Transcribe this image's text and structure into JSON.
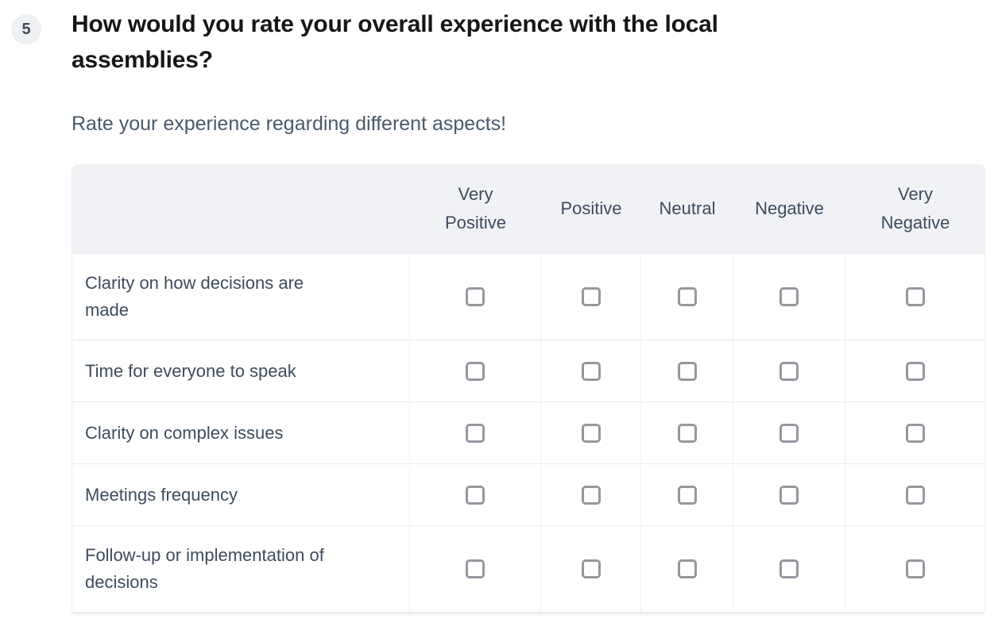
{
  "question": {
    "number": "5",
    "title": "How would you rate your overall experience with the local assemblies?",
    "description": "Rate your experience regarding different aspects!"
  },
  "matrix": {
    "columns": [
      "Very Positive",
      "Positive",
      "Neutral",
      "Negative",
      "Very Negative"
    ],
    "rows": [
      {
        "label": "Clarity on how decisions are made",
        "selected": null
      },
      {
        "label": "Time for everyone to speak",
        "selected": null
      },
      {
        "label": "Clarity on complex issues",
        "selected": null
      },
      {
        "label": "Meetings frequency",
        "selected": null
      },
      {
        "label": "Follow-up or implementation of decisions",
        "selected": null
      }
    ]
  },
  "colors": {
    "header_bg": "#f0f2f6",
    "badge_bg": "#eef0f4",
    "text_dark": "#161616",
    "text_slate": "#3e4c5c",
    "subtitle": "#4a5a6b",
    "checkbox_border": "#97969f",
    "border": "#e8eaee"
  }
}
